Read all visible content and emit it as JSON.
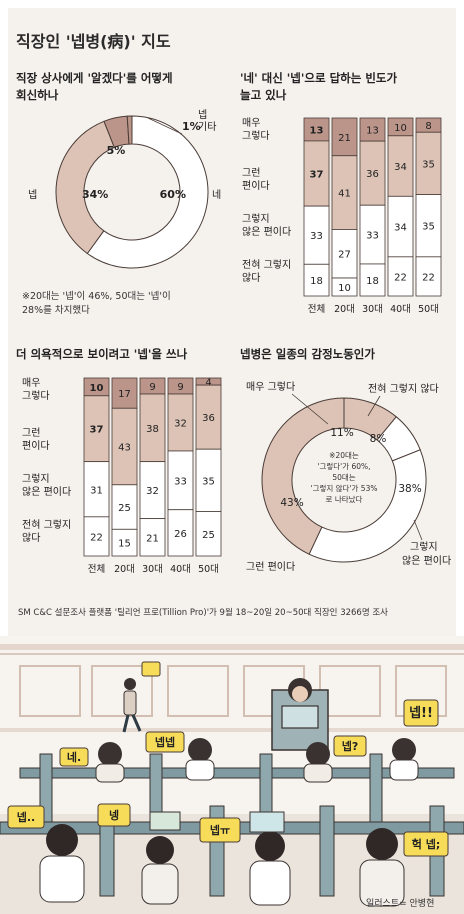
{
  "title": "직장인 '넵병(病)' 지도",
  "colors": {
    "panel": "#f5f1ec",
    "light": "#dcc3b6",
    "dark": "#bb958a",
    "white": "#ffffff",
    "outline": "#4a3c37"
  },
  "chart_data": [
    {
      "type": "pie",
      "style": "donut",
      "title": [
        "직장 상사에게 '알겠다'를 어떻게",
        "회신하나"
      ],
      "slices": [
        {
          "label": "네",
          "value": 60,
          "value_label": "60%",
          "color": "#ffffff"
        },
        {
          "label": "넵",
          "value": 34,
          "value_label": "34%",
          "color": "#dcc3b6"
        },
        {
          "label": "",
          "value": 5,
          "value_label": "5%",
          "color": "#bb958a"
        },
        {
          "label": "기타",
          "value": 1,
          "value_label": "1%",
          "color": "#bb958a"
        }
      ],
      "outer_labels": [
        "넵",
        "네"
      ],
      "note": [
        "※20대는 '넵'이 46%, 50대는 '넵'이",
        "28%를 차지했다"
      ]
    },
    {
      "type": "bar",
      "stacked": true,
      "title": [
        "'네' 대신 '넵'으로 답하는 빈도가",
        "늘고 있나"
      ],
      "categories": [
        "전체",
        "20대",
        "30대",
        "40대",
        "50대"
      ],
      "series": [
        {
          "name": [
            "매우",
            "그렇다"
          ],
          "values": [
            13,
            21,
            13,
            10,
            8
          ],
          "color": "#bb958a"
        },
        {
          "name": [
            "그런",
            "편이다"
          ],
          "values": [
            37,
            41,
            36,
            34,
            35
          ],
          "color": "#dcc3b6"
        },
        {
          "name": [
            "그렇지",
            "않은 편이다"
          ],
          "values": [
            33,
            27,
            33,
            34,
            35
          ],
          "color": "#ffffff"
        },
        {
          "name": [
            "전혀 그렇지",
            "않다"
          ],
          "values": [
            18,
            10,
            18,
            22,
            22
          ],
          "color": "#ffffff"
        }
      ]
    },
    {
      "type": "bar",
      "stacked": true,
      "title": [
        "더 의욕적으로 보이려고 '넵'을 쓰나"
      ],
      "categories": [
        "전체",
        "20대",
        "30대",
        "40대",
        "50대"
      ],
      "series": [
        {
          "name": [
            "매우",
            "그렇다"
          ],
          "values": [
            10,
            17,
            9,
            9,
            4
          ],
          "color": "#bb958a"
        },
        {
          "name": [
            "그런",
            "편이다"
          ],
          "values": [
            37,
            43,
            38,
            32,
            36
          ],
          "color": "#dcc3b6"
        },
        {
          "name": [
            "그렇지",
            "않은 편이다"
          ],
          "values": [
            31,
            25,
            32,
            33,
            35
          ],
          "color": "#ffffff"
        },
        {
          "name": [
            "전혀 그렇지",
            "않다"
          ],
          "values": [
            22,
            15,
            21,
            26,
            25
          ],
          "color": "#ffffff"
        }
      ]
    },
    {
      "type": "pie",
      "style": "donut",
      "title": [
        "넵병은 일종의 감정노동인가"
      ],
      "slices": [
        {
          "label": "매우 그렇다",
          "value": 11,
          "value_label": "11%",
          "color": "#dcc3b6"
        },
        {
          "label": "전혀 그렇지 않다",
          "value": 8,
          "value_label": "8%",
          "color": "#ffffff"
        },
        {
          "label": "그렇지 않은 편이다",
          "value": 38,
          "value_label": "38%",
          "color": "#ffffff"
        },
        {
          "label": "그런 편이다",
          "value": 43,
          "value_label": "43%",
          "color": "#dcc3b6"
        }
      ],
      "center_note": [
        "※20대는",
        "'그렇다'가 60%,",
        "50대는",
        "'그렇지 않다'가 53%",
        "로 나타났다"
      ]
    }
  ],
  "source": "SM C&C 설문조사 플랫폼 '틸리언 프로(Tillion Pro)'가 9월 18~20일 20~50대 직장인 3266명 조사",
  "illustration": {
    "bubbles": [
      "넵!!",
      "네.",
      "넵넵",
      "넵?",
      "넵..",
      "넹",
      "넵ㅠ",
      "헉 넵;"
    ],
    "credit": "일러스트= 안병현"
  }
}
